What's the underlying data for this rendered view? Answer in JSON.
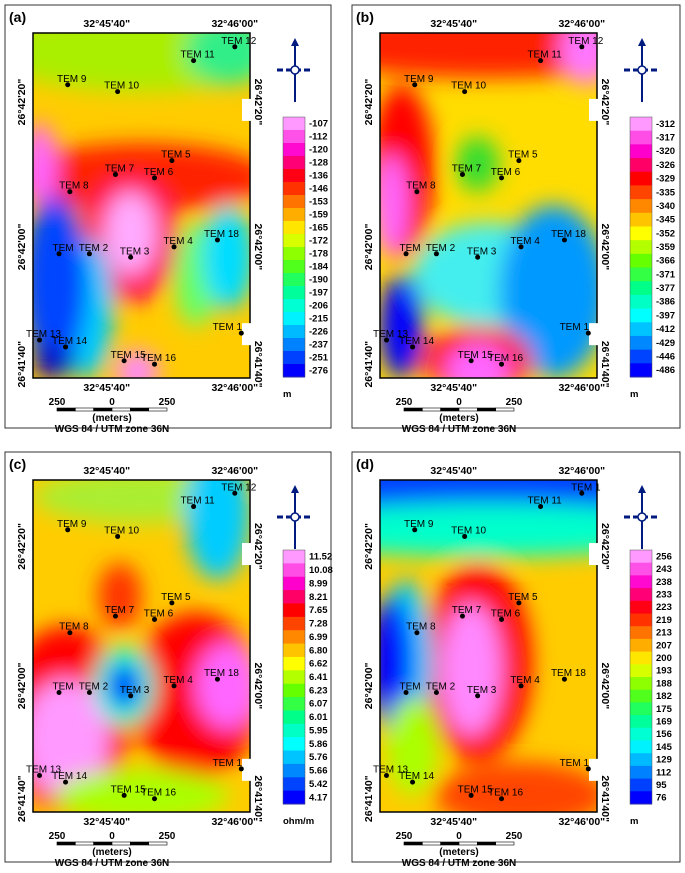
{
  "panels": [
    {
      "label": "(a)",
      "top_labels": [
        "32°45'40\"",
        "32°46'00\""
      ],
      "bottom_labels": [
        "32°45'40\"",
        "32°46'00\""
      ],
      "left_labels": [
        "26°42'20\"",
        "26°42'00\"",
        "26°41'40\""
      ],
      "right_labels": [
        "26°42'20\"",
        "26°42'00\"",
        "26°41'40\""
      ],
      "stations": [
        "TEM 12",
        "TEM 11",
        "TEM 9",
        "TEM 10",
        "TEM 7",
        "TEM 5",
        "TEM 6",
        "TEM 8",
        "TEM",
        "TEM 2",
        "TEM 3",
        "TEM 4",
        "TEM 18",
        "TEM 13",
        "TEM 14",
        "TEM 1",
        "TEM 15",
        "TEM 16"
      ],
      "legend_values": [
        "-107",
        "-112",
        "-120",
        "-128",
        "-136",
        "-146",
        "-153",
        "-159",
        "-165",
        "-172",
        "-178",
        "-184",
        "-190",
        "-197",
        "-206",
        "-215",
        "-226",
        "-237",
        "-251",
        "-276"
      ],
      "legend_unit": "m",
      "scale_labels": [
        "250",
        "0",
        "250"
      ],
      "scale_unit": "(meters)",
      "projection": "WGS 84 / UTM zone 36N"
    },
    {
      "label": "(b)",
      "top_labels": [
        "32°45'40\"",
        "32°46'00\""
      ],
      "bottom_labels": [
        "32°45'40\"",
        "32°46'00\""
      ],
      "left_labels": [
        "26°42'20\"",
        "26°42'00\"",
        "26°41'40\""
      ],
      "right_labels": [
        "26°42'20\"",
        "26°42'00\"",
        "26°41'40\""
      ],
      "stations": [
        "TEM 12",
        "TEM 11",
        "TEM 9",
        "TEM 10",
        "TEM 7",
        "TEM 5",
        "TEM 6",
        "TEM 8",
        "TEM",
        "TEM 2",
        "TEM 3",
        "TEM 4",
        "TEM 18",
        "TEM 13",
        "TEM 14",
        "TEM 1",
        "TEM 15",
        "TEM 16"
      ],
      "legend_values": [
        "-312",
        "-317",
        "-320",
        "-326",
        "-329",
        "-335",
        "-340",
        "-345",
        "-352",
        "-359",
        "-366",
        "-371",
        "-377",
        "-386",
        "-397",
        "-412",
        "-429",
        "-446",
        "-486"
      ],
      "legend_unit": "m",
      "scale_labels": [
        "250",
        "0",
        "250"
      ],
      "scale_unit": "(meters)",
      "projection": "WGS 84 / UTM zone 36N"
    },
    {
      "label": "(c)",
      "top_labels": [
        "32°45'40\"",
        "32°46'00\""
      ],
      "bottom_labels": [
        "32°45'40\"",
        "32°46'00\""
      ],
      "left_labels": [
        "26°42'20\"",
        "26°42'00\"",
        "26°41'40\""
      ],
      "right_labels": [
        "26°42'20\"",
        "26°42'00\"",
        "26°41'40\""
      ],
      "stations": [
        "TEM 12",
        "TEM 11",
        "TEM 9",
        "TEM 10",
        "TEM 7",
        "TEM 5",
        "TEM 6",
        "TEM 8",
        "TEM",
        "TEM 2",
        "TEM 3",
        "TEM 4",
        "TEM 18",
        "TEM 13",
        "TEM 14",
        "TEM 1",
        "TEM 15",
        "TEM 16"
      ],
      "legend_values": [
        "11.52",
        "10.08",
        "8.99",
        "8.21",
        "7.65",
        "7.28",
        "6.99",
        "6.80",
        "6.62",
        "6.41",
        "6.23",
        "6.07",
        "6.01",
        "5.95",
        "5.86",
        "5.76",
        "5.66",
        "5.42",
        "4.17"
      ],
      "legend_unit": "ohm/m",
      "scale_labels": [
        "250",
        "0",
        "250"
      ],
      "scale_unit": "(meters)",
      "projection": "WGS 84 / UTM zone 36N"
    },
    {
      "label": "(d)",
      "top_labels": [
        "32°45'40\"",
        "32°46'00\""
      ],
      "bottom_labels": [
        "32°45'40\"",
        "32°46'00\""
      ],
      "left_labels": [
        "26°42'20\"",
        "26°42'00\"",
        "26°41'40\""
      ],
      "right_labels": [
        "26°42'20\"",
        "26°42'00\"",
        "26°41'40\""
      ],
      "stations": [
        "TEM 1",
        "TEM 11",
        "TEM 9",
        "TEM 10",
        "TEM 7",
        "TEM 5",
        "TEM 6",
        "TEM 8",
        "TEM",
        "TEM 2",
        "TEM 3",
        "TEM 4",
        "TEM 18",
        "TEM 13",
        "TEM 14",
        "TEM 1",
        "TEM 15",
        "TEM 16"
      ],
      "legend_values": [
        "256",
        "243",
        "238",
        "233",
        "223",
        "219",
        "213",
        "207",
        "200",
        "193",
        "188",
        "182",
        "175",
        "169",
        "156",
        "145",
        "129",
        "112",
        "95",
        "76"
      ],
      "legend_unit": "m",
      "scale_labels": [
        "250",
        "0",
        "250"
      ],
      "scale_unit": "(meters)",
      "projection": "WGS 84 / UTM zone 36N"
    }
  ]
}
